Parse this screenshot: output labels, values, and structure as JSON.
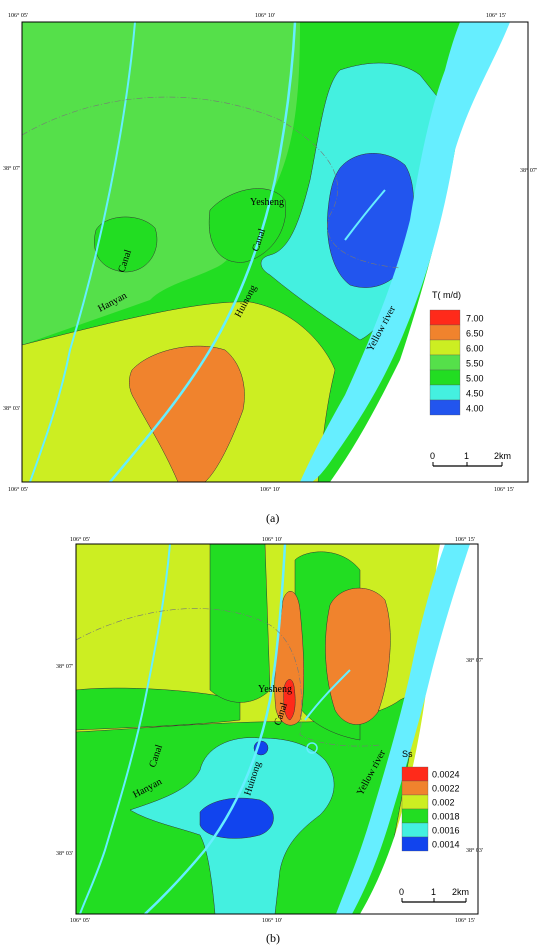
{
  "panel_a": {
    "caption": "(a)",
    "coords": {
      "top_left": "106° 05′",
      "top_mid": "106° 10′",
      "top_right": "106° 15′",
      "bottom_left": "106° 05′",
      "bottom_mid": "106° 10′",
      "bottom_right": "106° 15′",
      "left_upper": "38° 07′",
      "left_lower": "38° 03′",
      "right_upper": "38° 07′"
    },
    "labels": {
      "yesheng": "Yesheng",
      "canal_right": "Canal",
      "huinong": "Huinong",
      "canal_left": "Canal",
      "hanyan": "Hanyan",
      "yellow_river": "Yellow river"
    },
    "legend": {
      "title": "T( m/d)",
      "items": [
        {
          "label": "7.00",
          "color": "#ff2a1a"
        },
        {
          "label": "6.50",
          "color": "#f0832d"
        },
        {
          "label": "6.00",
          "color": "#ccee22"
        },
        {
          "label": "5.50",
          "color": "#55e04a"
        },
        {
          "label": "5.00",
          "color": "#22dd22"
        },
        {
          "label": "4.50",
          "color": "#44f0e0"
        },
        {
          "label": "4.00",
          "color": "#2255ee"
        }
      ]
    },
    "scale": {
      "start": "0",
      "mid": "1",
      "end": "2km"
    }
  },
  "panel_b": {
    "caption": "(b)",
    "coords": {
      "top_left": "106° 05′",
      "top_mid": "106° 10′",
      "top_right": "106° 15′",
      "bottom_left": "106° 05′",
      "bottom_mid": "106° 10′",
      "bottom_right": "106° 15′",
      "left_upper": "38° 07′",
      "left_lower": "38° 03′",
      "right_upper": "38° 07′",
      "right_lower": "38° 03′"
    },
    "labels": {
      "yesheng": "Yesheng",
      "canal_right": "Canal",
      "huinong": "Huinong",
      "canal_left": "Canal",
      "hanyan": "Hanyan",
      "yellow_river": "Yellow river"
    },
    "legend": {
      "title": "Ss",
      "items": [
        {
          "label": "0.0024",
          "color": "#ff2a1a"
        },
        {
          "label": "0.0022",
          "color": "#f0832d"
        },
        {
          "label": "0.002",
          "color": "#ccee22"
        },
        {
          "label": "0.0018",
          "color": "#22dd22"
        },
        {
          "label": "0.0016",
          "color": "#44f0e0"
        },
        {
          "label": "0.0014",
          "color": "#1144ee"
        }
      ]
    },
    "scale": {
      "start": "0",
      "mid": "1",
      "end": "2km"
    }
  },
  "colors": {
    "river": "#66eeff",
    "contour_line": "#333333"
  }
}
